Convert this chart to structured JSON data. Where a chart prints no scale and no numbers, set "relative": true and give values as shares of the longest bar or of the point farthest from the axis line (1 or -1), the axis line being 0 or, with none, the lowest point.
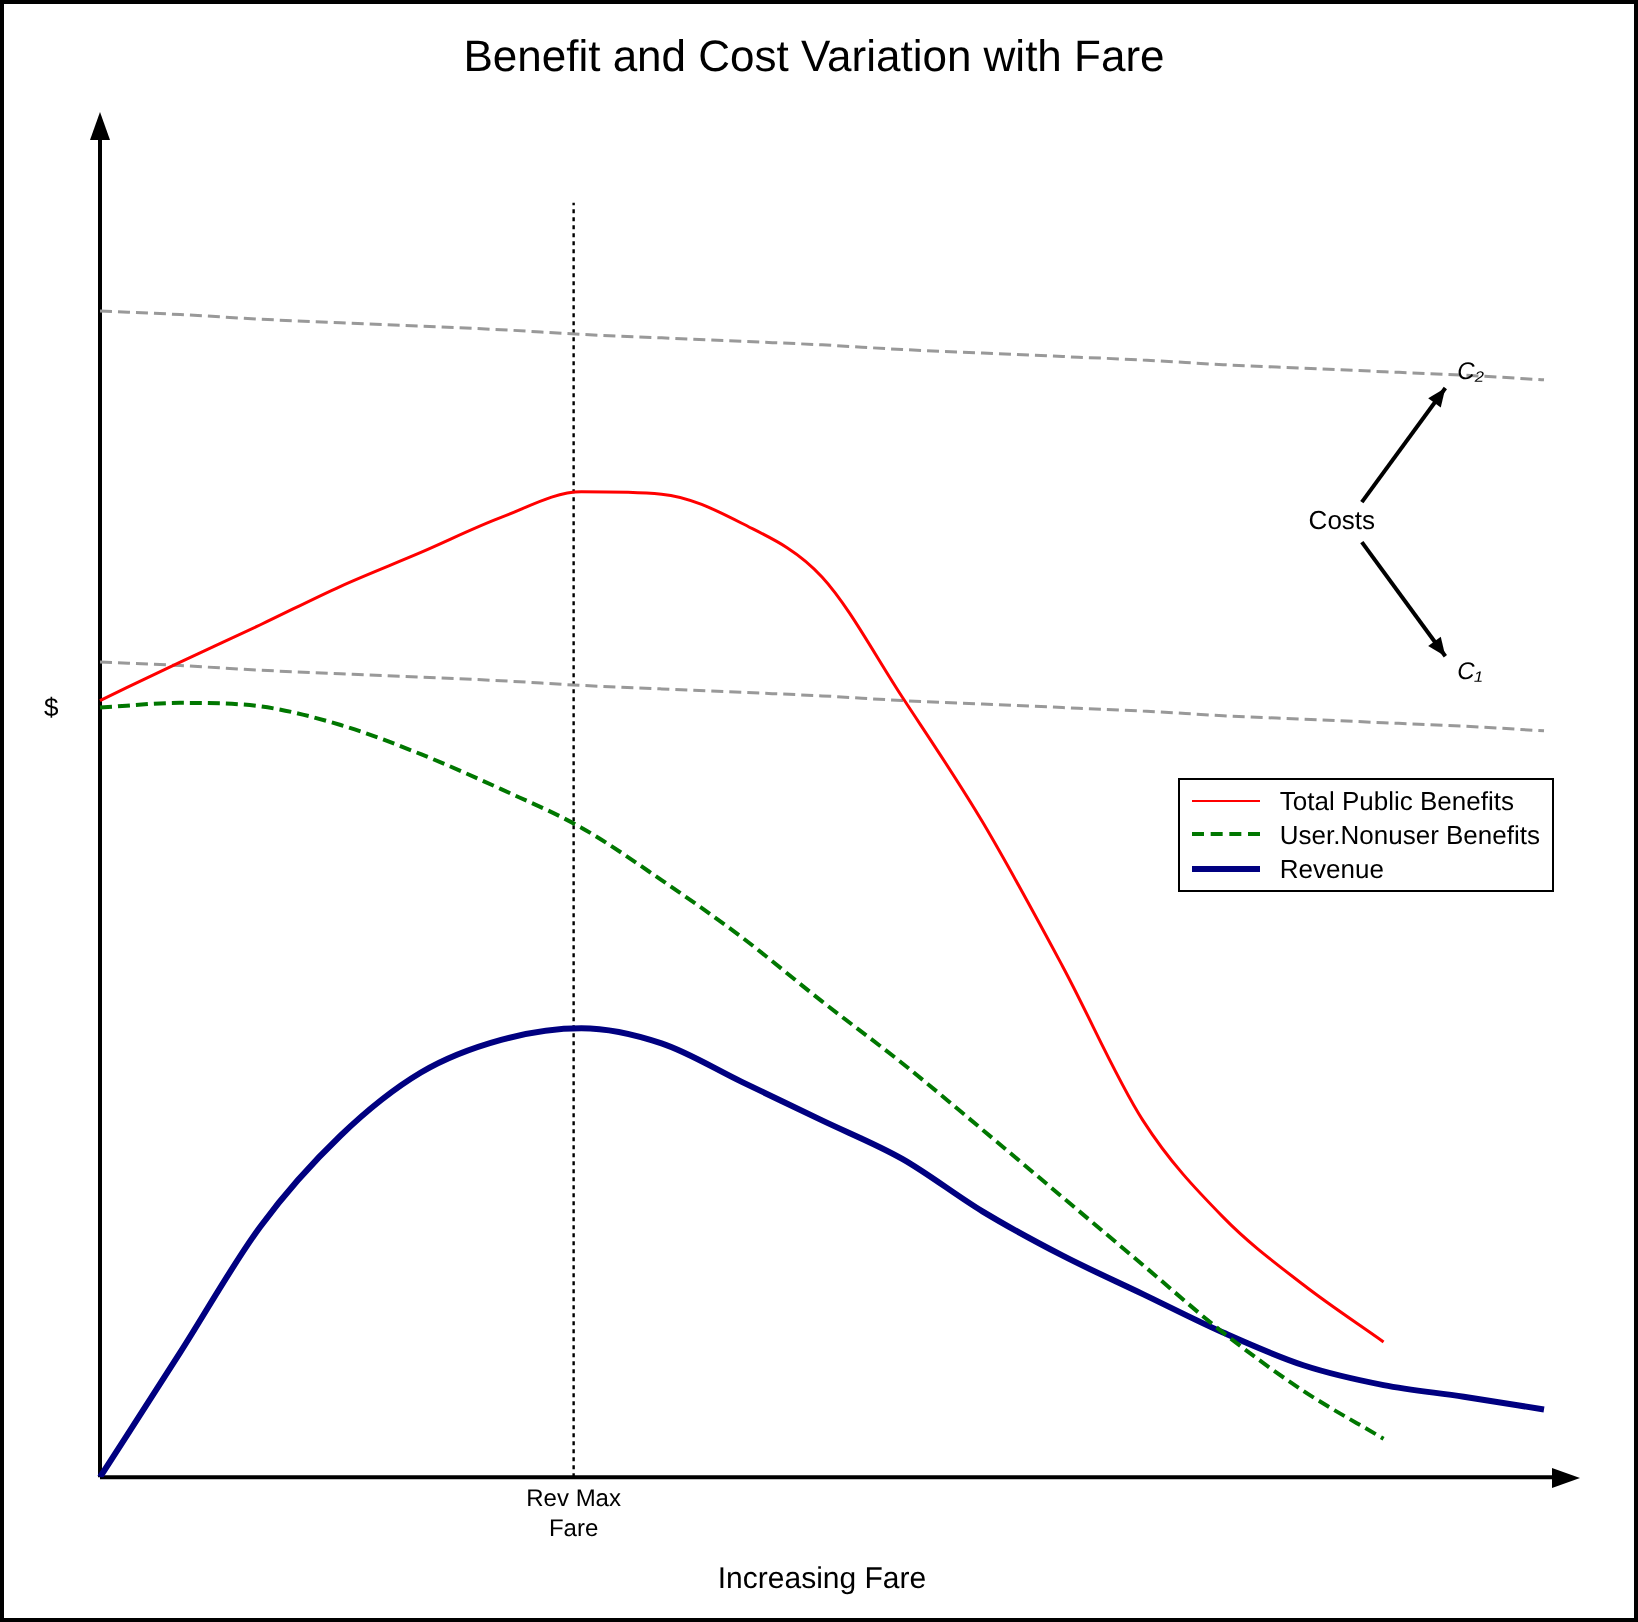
{
  "chart_data": {
    "type": "line",
    "title": "Benefit and Cost Variation with Fare",
    "xlabel": "Increasing Fare",
    "ylabel": "$",
    "relative": true,
    "legend": "right",
    "marker": "none",
    "categories": [
      null,
      null,
      null,
      null,
      null,
      null,
      null,
      null,
      null,
      null,
      null,
      null,
      null,
      null,
      null,
      null,
      null,
      null,
      null
    ],
    "series": [
      {
        "name": "Total Public Benefits",
        "color": "#ff0000",
        "line_style": "solid",
        "values": [
          0.666,
          0.699,
          0.731,
          0.764,
          0.793,
          0.823,
          0.845,
          0.843,
          0.818,
          0.772,
          0.669,
          0.562,
          0.438,
          0.306,
          0.223,
          0.165,
          0.116,
          null,
          null
        ]
      },
      {
        "name": "User.Nonuser Benefits",
        "color": "#007700",
        "line_style": "dashed",
        "values": [
          0.66,
          0.664,
          0.661,
          0.645,
          0.62,
          0.59,
          0.557,
          0.512,
          0.463,
          0.408,
          0.355,
          0.298,
          0.24,
          0.182,
          0.124,
          0.074,
          0.033,
          null,
          null
        ]
      },
      {
        "name": "Revenue",
        "color": "#000080",
        "line_style": "solid",
        "values": [
          0,
          0.107,
          0.215,
          0.293,
          0.347,
          0.375,
          0.385,
          0.372,
          0.339,
          0.306,
          0.273,
          0.228,
          0.19,
          0.157,
          0.124,
          0.096,
          0.079,
          0.069,
          0.058
        ]
      },
      {
        "color": "#999999",
        "line_style": "dashed",
        "values": [
          1.0,
          0.997,
          0.993,
          0.99,
          0.987,
          0.984,
          0.98,
          0.977,
          0.974,
          0.971,
          0.967,
          0.964,
          0.961,
          0.958,
          0.954,
          0.951,
          0.948,
          0.945,
          0.941
        ]
      },
      {
        "color": "#999999",
        "line_style": "dashed",
        "values": [
          0.699,
          0.696,
          0.692,
          0.689,
          0.686,
          0.683,
          0.679,
          0.676,
          0.673,
          0.67,
          0.666,
          0.663,
          0.66,
          0.657,
          0.653,
          0.65,
          0.647,
          0.644,
          0.64
        ]
      }
    ],
    "annotations": [
      "Rev Max Fare",
      "Costs",
      "C₂",
      "C₁"
    ]
  }
}
